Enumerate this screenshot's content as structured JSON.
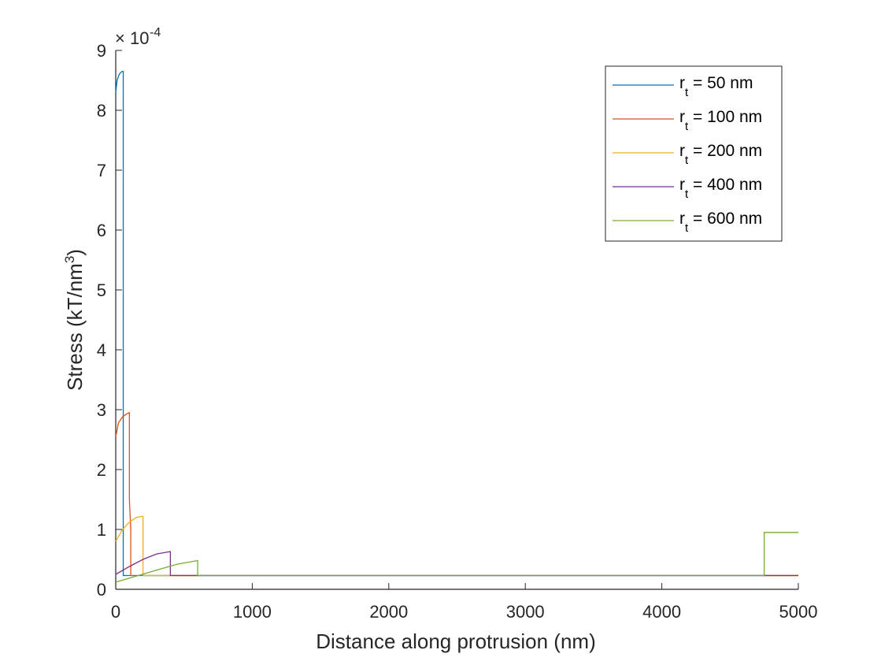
{
  "chart_data": {
    "type": "line",
    "xlabel": "Distance along protrusion (nm)",
    "ylabel_main": "Stress (kT/nm",
    "ylabel_sup": "3",
    "ylabel_close": ")",
    "xlim": [
      0,
      5000
    ],
    "ylim": [
      0,
      9
    ],
    "xticks": [
      0,
      1000,
      2000,
      3000,
      4000,
      5000
    ],
    "yticks": [
      0,
      1,
      2,
      3,
      4,
      5,
      6,
      7,
      8,
      9
    ],
    "xtick_labels": [
      "0",
      "1000",
      "2000",
      "3000",
      "4000",
      "5000"
    ],
    "ytick_labels": [
      "0",
      "1",
      "2",
      "3",
      "4",
      "5",
      "6",
      "7",
      "8",
      "9"
    ],
    "y_multiplier": {
      "base": "10",
      "exponent": "-4"
    },
    "grid": false,
    "legend_position": "top-right",
    "colors": {
      "rt_50": "#0072BD",
      "rt_100": "#D95319",
      "rt_200": "#EDB120",
      "rt_400": "#7E2F8E",
      "rt_600": "#77AC30"
    },
    "series": [
      {
        "key": "rt_50",
        "name_pre": "r",
        "name_sub": "t",
        "name_post": " = 50 nm",
        "x": [
          0,
          10,
          25,
          40,
          50,
          55,
          55,
          60,
          5000
        ],
        "y": [
          8.3,
          8.5,
          8.6,
          8.64,
          8.65,
          8.65,
          0.23,
          0.23,
          0.23
        ]
      },
      {
        "key": "rt_100",
        "name_pre": "r",
        "name_sub": "t",
        "name_post": " = 100 nm",
        "x": [
          0,
          20,
          50,
          80,
          100,
          100,
          110,
          110,
          5000
        ],
        "y": [
          2.55,
          2.78,
          2.88,
          2.93,
          2.95,
          1.5,
          1.0,
          0.23,
          0.23
        ]
      },
      {
        "key": "rt_200",
        "name_pre": "r",
        "name_sub": "t",
        "name_post": " = 200 nm",
        "x": [
          0,
          50,
          100,
          150,
          200,
          200,
          5000
        ],
        "y": [
          0.8,
          1.0,
          1.12,
          1.2,
          1.22,
          0.23,
          0.23
        ]
      },
      {
        "key": "rt_400",
        "name_pre": "r",
        "name_sub": "t",
        "name_post": " = 400 nm",
        "x": [
          0,
          100,
          200,
          300,
          400,
          400,
          5000
        ],
        "y": [
          0.25,
          0.38,
          0.5,
          0.59,
          0.63,
          0.23,
          0.23
        ]
      },
      {
        "key": "rt_600",
        "name_pre": "r",
        "name_sub": "t",
        "name_post": " = 600 nm",
        "x": [
          0,
          150,
          300,
          450,
          600,
          600,
          4750,
          4750,
          5000
        ],
        "y": [
          0.12,
          0.22,
          0.32,
          0.42,
          0.48,
          0.23,
          0.23,
          0.95,
          0.95
        ]
      }
    ]
  }
}
